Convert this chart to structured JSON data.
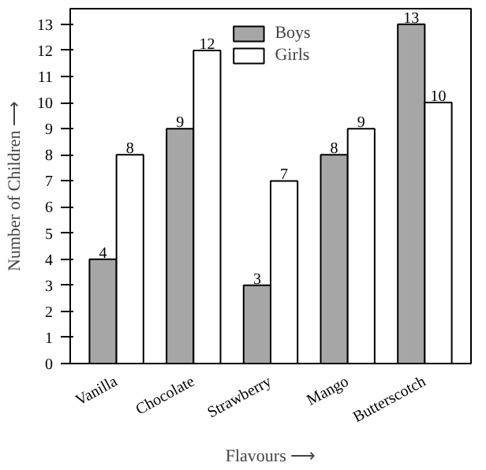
{
  "chart_data": {
    "type": "bar",
    "xlabel": "Flavours ⟶",
    "ylabel": "Number of Children ⟶",
    "categories": [
      "Vanilla",
      "Chocolate",
      "Strawberry",
      "Mango",
      "Butterscotch"
    ],
    "series": [
      {
        "name": "Boys",
        "color": "#a6a6a6",
        "values": [
          4,
          9,
          3,
          8,
          13
        ]
      },
      {
        "name": "Girls",
        "color": "#ffffff",
        "values": [
          8,
          12,
          7,
          9,
          10
        ]
      }
    ],
    "ylim": [
      0,
      13.6
    ],
    "yticks": [
      0,
      1,
      2,
      3,
      4,
      5,
      6,
      7,
      8,
      9,
      10,
      11,
      12,
      13
    ],
    "data_labels": true,
    "grid": false,
    "legend": "top"
  }
}
